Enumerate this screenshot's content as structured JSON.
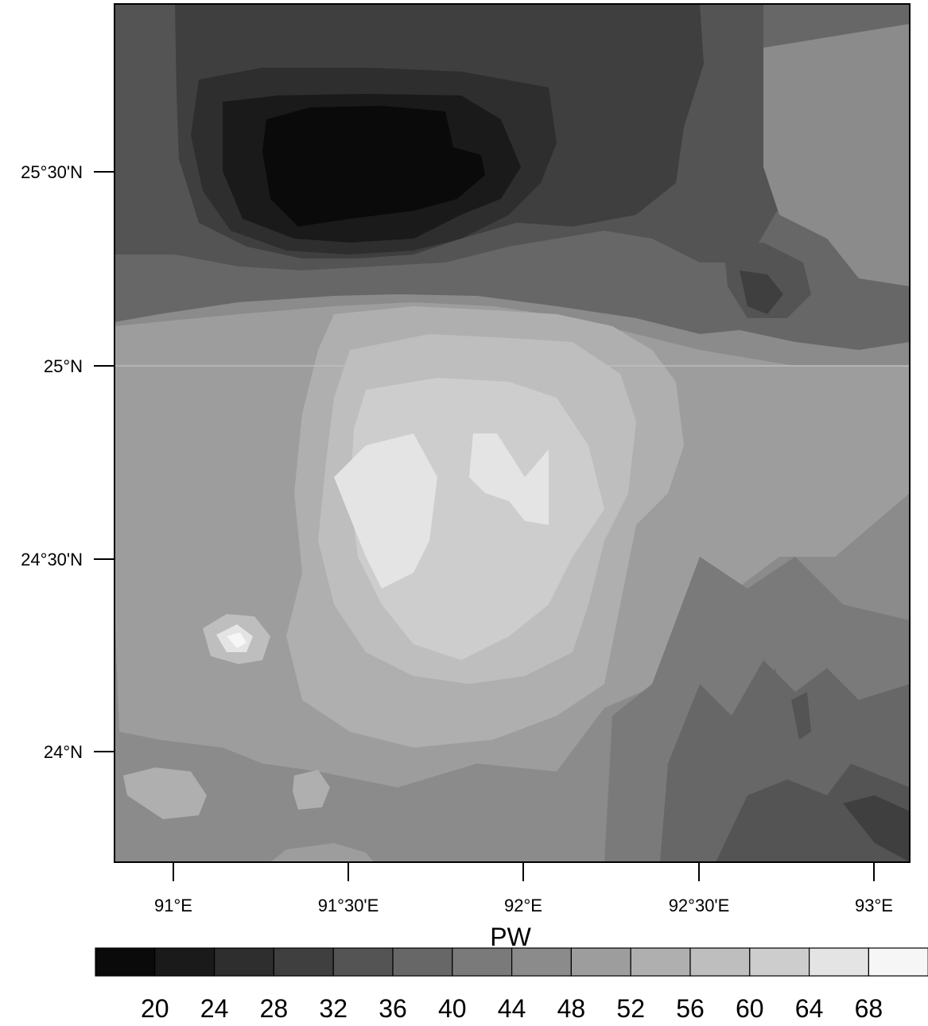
{
  "map": {
    "lon_ticks": [
      "91°E",
      "91°30'E",
      "92°E",
      "92°30'E",
      "93°E"
    ],
    "lat_ticks": [
      "25°30'N",
      "25°N",
      "24°30'N",
      "24°N"
    ],
    "colorbar": {
      "title": "PW",
      "labels": [
        "20",
        "24",
        "28",
        "32",
        "36",
        "40",
        "44",
        "48",
        "52",
        "56",
        "60",
        "64",
        "68"
      ],
      "colors": [
        "#0a0a0a",
        "#1a1a1a",
        "#2e2e2e",
        "#3f3f3f",
        "#545454",
        "#676767",
        "#7a7a7a",
        "#8b8b8b",
        "#9d9d9d",
        "#afafaf",
        "#bebebe",
        "#cdcdcd",
        "#e4e4e4",
        "#f6f6f6"
      ]
    }
  }
}
